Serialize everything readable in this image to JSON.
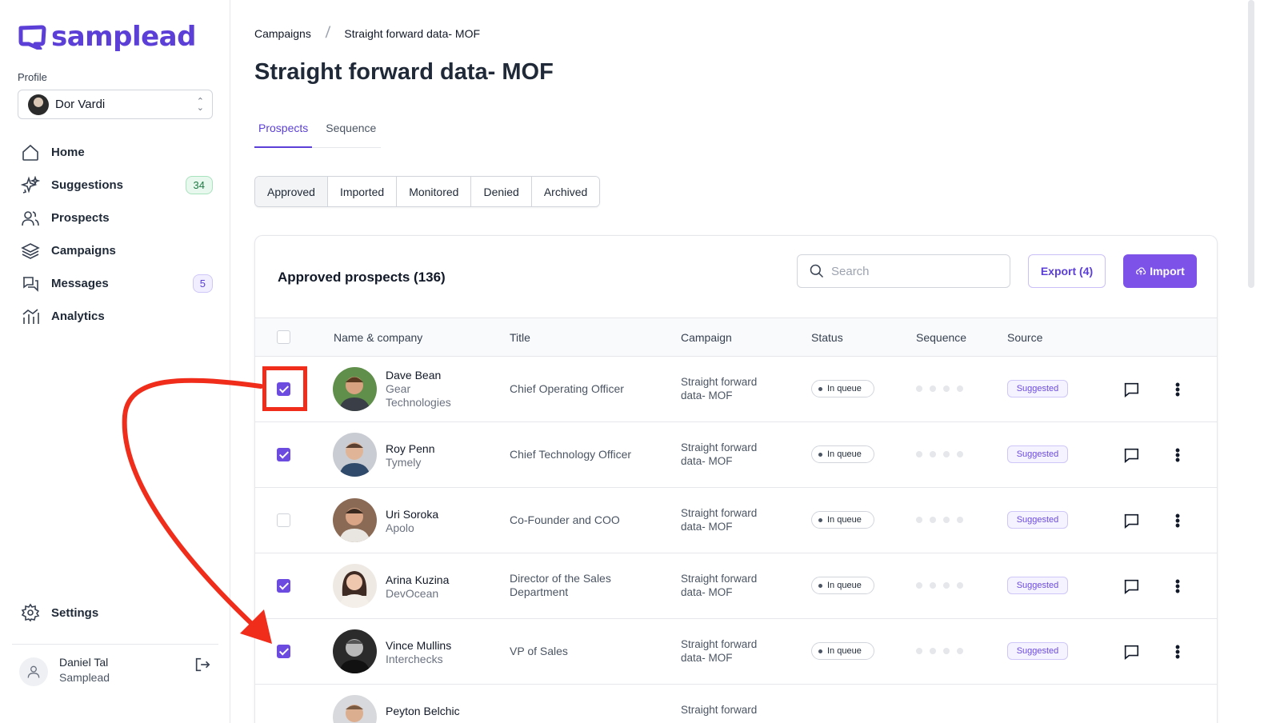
{
  "brand": {
    "name": "samplead",
    "color": "#5b3fd6"
  },
  "sidebar": {
    "profile_label": "Profile",
    "profile_name": "Dor Vardi",
    "items": [
      {
        "label": "Home",
        "icon": "home-icon"
      },
      {
        "label": "Suggestions",
        "icon": "sparkles-icon",
        "badge": "34"
      },
      {
        "label": "Prospects",
        "icon": "users-icon"
      },
      {
        "label": "Campaigns",
        "icon": "layers-icon"
      },
      {
        "label": "Messages",
        "icon": "chat-icon",
        "badge": "5"
      },
      {
        "label": "Analytics",
        "icon": "analytics-icon"
      }
    ],
    "settings_label": "Settings",
    "user": {
      "name": "Daniel Tal",
      "org": "Samplead"
    }
  },
  "breadcrumb": {
    "parent": "Campaigns",
    "current": "Straight forward data- MOF"
  },
  "page_title": "Straight forward data- MOF",
  "tabs": [
    {
      "label": "Prospects",
      "active": true
    },
    {
      "label": "Sequence",
      "active": false
    }
  ],
  "filters": [
    {
      "label": "Approved",
      "active": true
    },
    {
      "label": "Imported"
    },
    {
      "label": "Monitored"
    },
    {
      "label": "Denied"
    },
    {
      "label": "Archived"
    }
  ],
  "card": {
    "title": "Approved prospects (136)",
    "search_placeholder": "Search",
    "export_label": "Export (4)",
    "import_label": "Import"
  },
  "table": {
    "headers": {
      "name": "Name & company",
      "title": "Title",
      "campaign": "Campaign",
      "status": "Status",
      "sequence": "Sequence",
      "source": "Source"
    },
    "rows": [
      {
        "name": "Dave Bean",
        "company": "Gear Technologies",
        "title": "Chief Operating Officer",
        "campaign1": "Straight forward",
        "campaign2": "data- MOF",
        "status": "In queue",
        "source": "Suggested",
        "checked": true
      },
      {
        "name": "Roy Penn",
        "company": "Tymely",
        "title": "Chief Technology Officer",
        "campaign1": "Straight forward",
        "campaign2": "data- MOF",
        "status": "In queue",
        "source": "Suggested",
        "checked": true
      },
      {
        "name": "Uri Soroka",
        "company": "Apolo",
        "title": "Co-Founder and COO",
        "campaign1": "Straight forward",
        "campaign2": "data- MOF",
        "status": "In queue",
        "source": "Suggested",
        "checked": false
      },
      {
        "name": "Arina Kuzina",
        "company": "DevOcean",
        "title": "Director of the Sales Department",
        "campaign1": "Straight forward",
        "campaign2": "data- MOF",
        "status": "In queue",
        "source": "Suggested",
        "checked": true
      },
      {
        "name": "Vince Mullins",
        "company": "Interchecks",
        "title": "VP of Sales",
        "campaign1": "Straight forward",
        "campaign2": "data- MOF",
        "status": "In queue",
        "source": "Suggested",
        "checked": true
      },
      {
        "name": "Peyton Belchic",
        "company": "",
        "title": "",
        "campaign1": "Straight forward",
        "campaign2": "",
        "status": "",
        "source": "",
        "checked": false
      }
    ]
  },
  "colors": {
    "accent": "#7c52e8",
    "annotation": "#f02c1a"
  }
}
